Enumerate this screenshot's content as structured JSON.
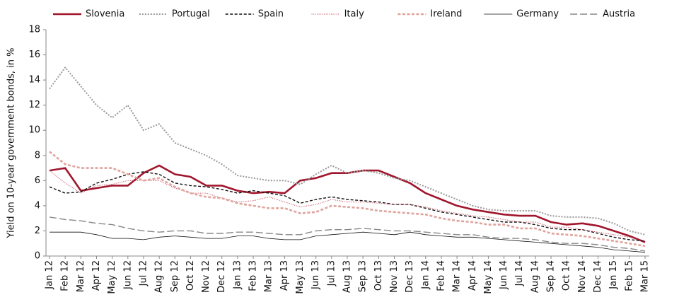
{
  "chart_data": {
    "type": "line",
    "y_label": "Yield on 10-year government bonds, in %",
    "categories": [
      "Jan 12",
      "Feb 12",
      "Mar 12",
      "Apr 12",
      "May 12",
      "Jun 12",
      "Jul 12",
      "Aug 12",
      "Sep 12",
      "Oct 12",
      "Nov 12",
      "Dec 12",
      "Jan 13",
      "Feb 13",
      "Mar 13",
      "Apr 13",
      "May 13",
      "Jun 13",
      "Jul 13",
      "Aug 13",
      "Sep 13",
      "Oct 13",
      "Nov 13",
      "Dec 13",
      "Jan 14",
      "Feb 14",
      "Mar 14",
      "Apr 14",
      "May 14",
      "Jun 14",
      "Jul 14",
      "Aug 14",
      "Sep 14",
      "Oct 14",
      "Nov 14",
      "Dec 14",
      "Jan 15",
      "Feb 15",
      "Mar 15"
    ],
    "series": [
      {
        "name": "Slovenia",
        "color": "#a0162c",
        "line_style": "solid",
        "line_width": 2.6,
        "values": [
          6.8,
          7.0,
          5.2,
          5.4,
          5.6,
          5.6,
          6.6,
          7.2,
          6.5,
          6.3,
          5.6,
          5.6,
          5.2,
          5.0,
          5.1,
          5.0,
          6.0,
          6.2,
          6.6,
          6.6,
          6.8,
          6.8,
          6.3,
          5.8,
          5.0,
          4.5,
          4.0,
          3.7,
          3.5,
          3.3,
          3.2,
          3.2,
          2.7,
          2.5,
          2.6,
          2.4,
          2.0,
          1.6,
          1.1
        ]
      },
      {
        "name": "Portugal",
        "color": "#999999",
        "line_style": "dotted",
        "line_width": 2,
        "values": [
          13.3,
          15.0,
          13.5,
          12.0,
          11.0,
          12.0,
          10.0,
          10.5,
          9.0,
          8.5,
          8.0,
          7.3,
          6.4,
          6.2,
          6.0,
          6.0,
          5.7,
          6.5,
          7.2,
          6.6,
          6.8,
          6.6,
          6.2,
          6.0,
          5.5,
          5.0,
          4.5,
          4.0,
          3.7,
          3.6,
          3.6,
          3.6,
          3.2,
          3.1,
          3.1,
          3.0,
          2.6,
          2.0,
          1.7
        ]
      },
      {
        "name": "Spain",
        "color": "#111111",
        "line_style": "dashed",
        "line_width": 1.4,
        "values": [
          5.5,
          5.0,
          5.1,
          5.8,
          6.1,
          6.5,
          6.7,
          6.5,
          5.8,
          5.6,
          5.5,
          5.3,
          5.0,
          5.2,
          5.0,
          4.8,
          4.2,
          4.5,
          4.7,
          4.5,
          4.4,
          4.3,
          4.1,
          4.1,
          3.8,
          3.5,
          3.3,
          3.1,
          2.9,
          2.7,
          2.7,
          2.5,
          2.2,
          2.1,
          2.1,
          1.8,
          1.5,
          1.3,
          1.2
        ]
      },
      {
        "name": "Italy",
        "color": "#c0394f",
        "line_style": "fine-dotted",
        "line_width": 1,
        "values": [
          6.8,
          5.8,
          5.0,
          5.6,
          5.7,
          6.0,
          6.0,
          6.0,
          5.4,
          5.0,
          5.0,
          4.6,
          4.3,
          4.4,
          4.7,
          4.3,
          3.9,
          4.1,
          4.5,
          4.3,
          4.3,
          4.2,
          4.1,
          4.1,
          3.9,
          3.6,
          3.4,
          3.2,
          3.1,
          2.9,
          2.7,
          2.7,
          2.3,
          2.3,
          2.1,
          1.9,
          1.7,
          1.5,
          1.2
        ]
      },
      {
        "name": "Ireland",
        "color": "#e0a39c",
        "line_style": "dashed",
        "line_width": 2.6,
        "values": [
          8.3,
          7.3,
          7.0,
          7.0,
          7.0,
          6.5,
          6.0,
          6.2,
          5.5,
          5.0,
          4.7,
          4.6,
          4.2,
          4.0,
          3.8,
          3.8,
          3.4,
          3.5,
          4.0,
          3.9,
          3.8,
          3.6,
          3.5,
          3.4,
          3.3,
          3.0,
          2.8,
          2.7,
          2.5,
          2.5,
          2.2,
          2.2,
          1.8,
          1.7,
          1.6,
          1.4,
          1.2,
          1.0,
          0.8
        ]
      },
      {
        "name": "Germany",
        "color": "#111111",
        "line_style": "solid",
        "line_width": 0.8,
        "values": [
          1.9,
          1.9,
          1.9,
          1.7,
          1.4,
          1.4,
          1.3,
          1.5,
          1.6,
          1.5,
          1.4,
          1.4,
          1.6,
          1.6,
          1.4,
          1.3,
          1.3,
          1.6,
          1.7,
          1.8,
          1.9,
          1.8,
          1.7,
          1.9,
          1.7,
          1.6,
          1.5,
          1.5,
          1.4,
          1.3,
          1.2,
          1.1,
          1.0,
          0.9,
          0.8,
          0.7,
          0.5,
          0.4,
          0.3
        ]
      },
      {
        "name": "Austria",
        "color": "#888888",
        "line_style": "long-dashed",
        "line_width": 1.4,
        "values": [
          3.1,
          2.9,
          2.8,
          2.6,
          2.5,
          2.2,
          2.0,
          1.9,
          2.0,
          2.0,
          1.8,
          1.8,
          1.9,
          1.9,
          1.8,
          1.7,
          1.7,
          2.0,
          2.1,
          2.1,
          2.2,
          2.1,
          2.0,
          2.0,
          1.9,
          1.8,
          1.7,
          1.7,
          1.5,
          1.4,
          1.4,
          1.3,
          1.1,
          1.0,
          1.0,
          0.9,
          0.7,
          0.6,
          0.4
        ]
      }
    ],
    "ylim": [
      0,
      18
    ],
    "yticks": [
      0,
      2,
      4,
      6,
      8,
      10,
      12,
      14,
      16,
      18
    ],
    "grid": false,
    "legend": "top"
  }
}
